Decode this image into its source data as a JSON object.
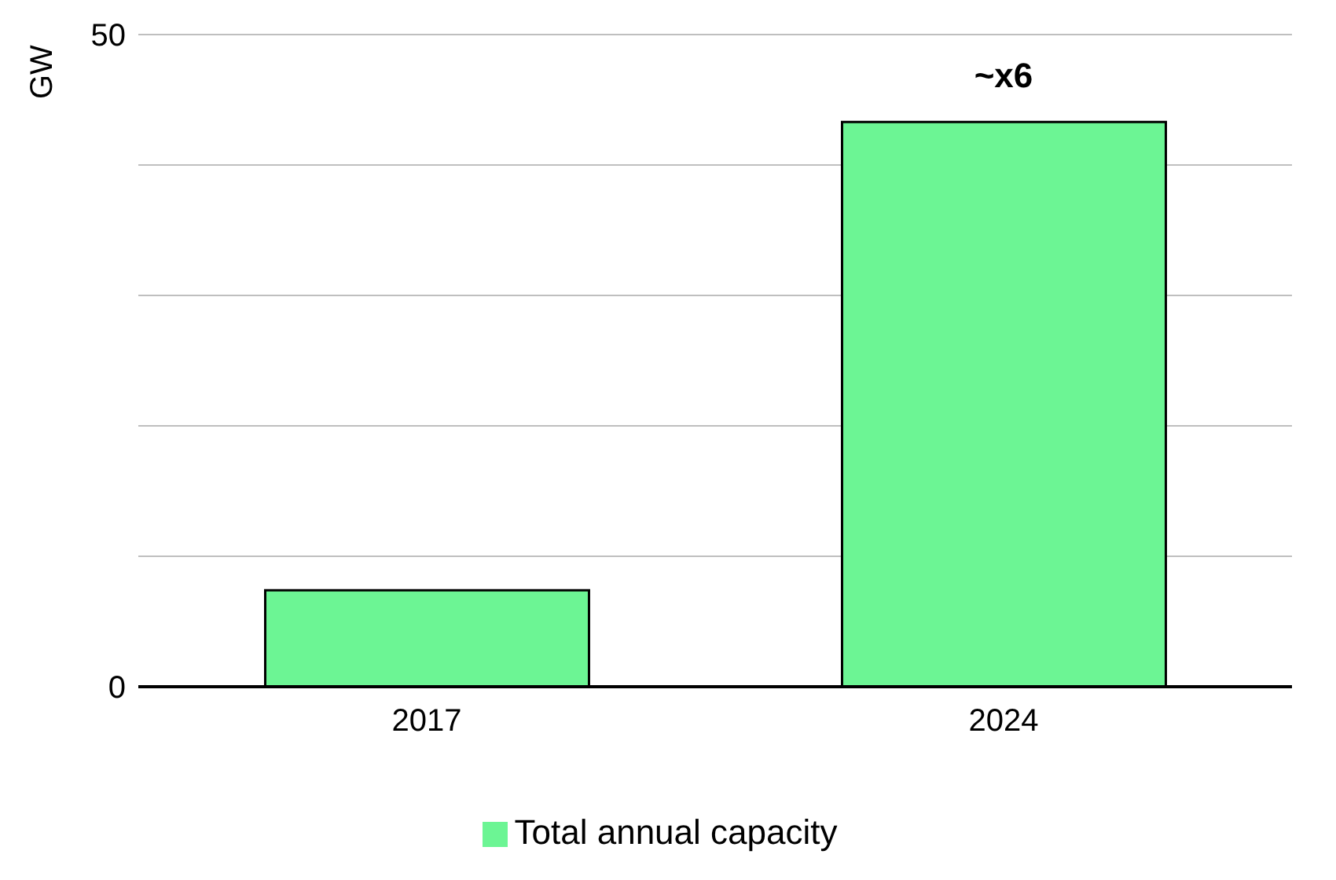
{
  "chart_data": {
    "type": "bar",
    "ylabel": "GW",
    "categories": [
      "2017",
      "2024"
    ],
    "series": [
      {
        "name": "Total annual capacity",
        "color": "#6cf594",
        "values": [
          7.4,
          43.3
        ]
      }
    ],
    "ylim": [
      0,
      50
    ],
    "yticks": [
      0,
      {
        "value": 10,
        "label": null
      },
      {
        "value": 20,
        "label": null
      },
      {
        "value": 30,
        "label": null
      },
      {
        "value": 40,
        "label": null
      },
      50
    ],
    "grid": "y",
    "legend": "bottom",
    "annotations": [
      {
        "text": "~x6",
        "x": "2024",
        "y": 43.3
      }
    ]
  }
}
